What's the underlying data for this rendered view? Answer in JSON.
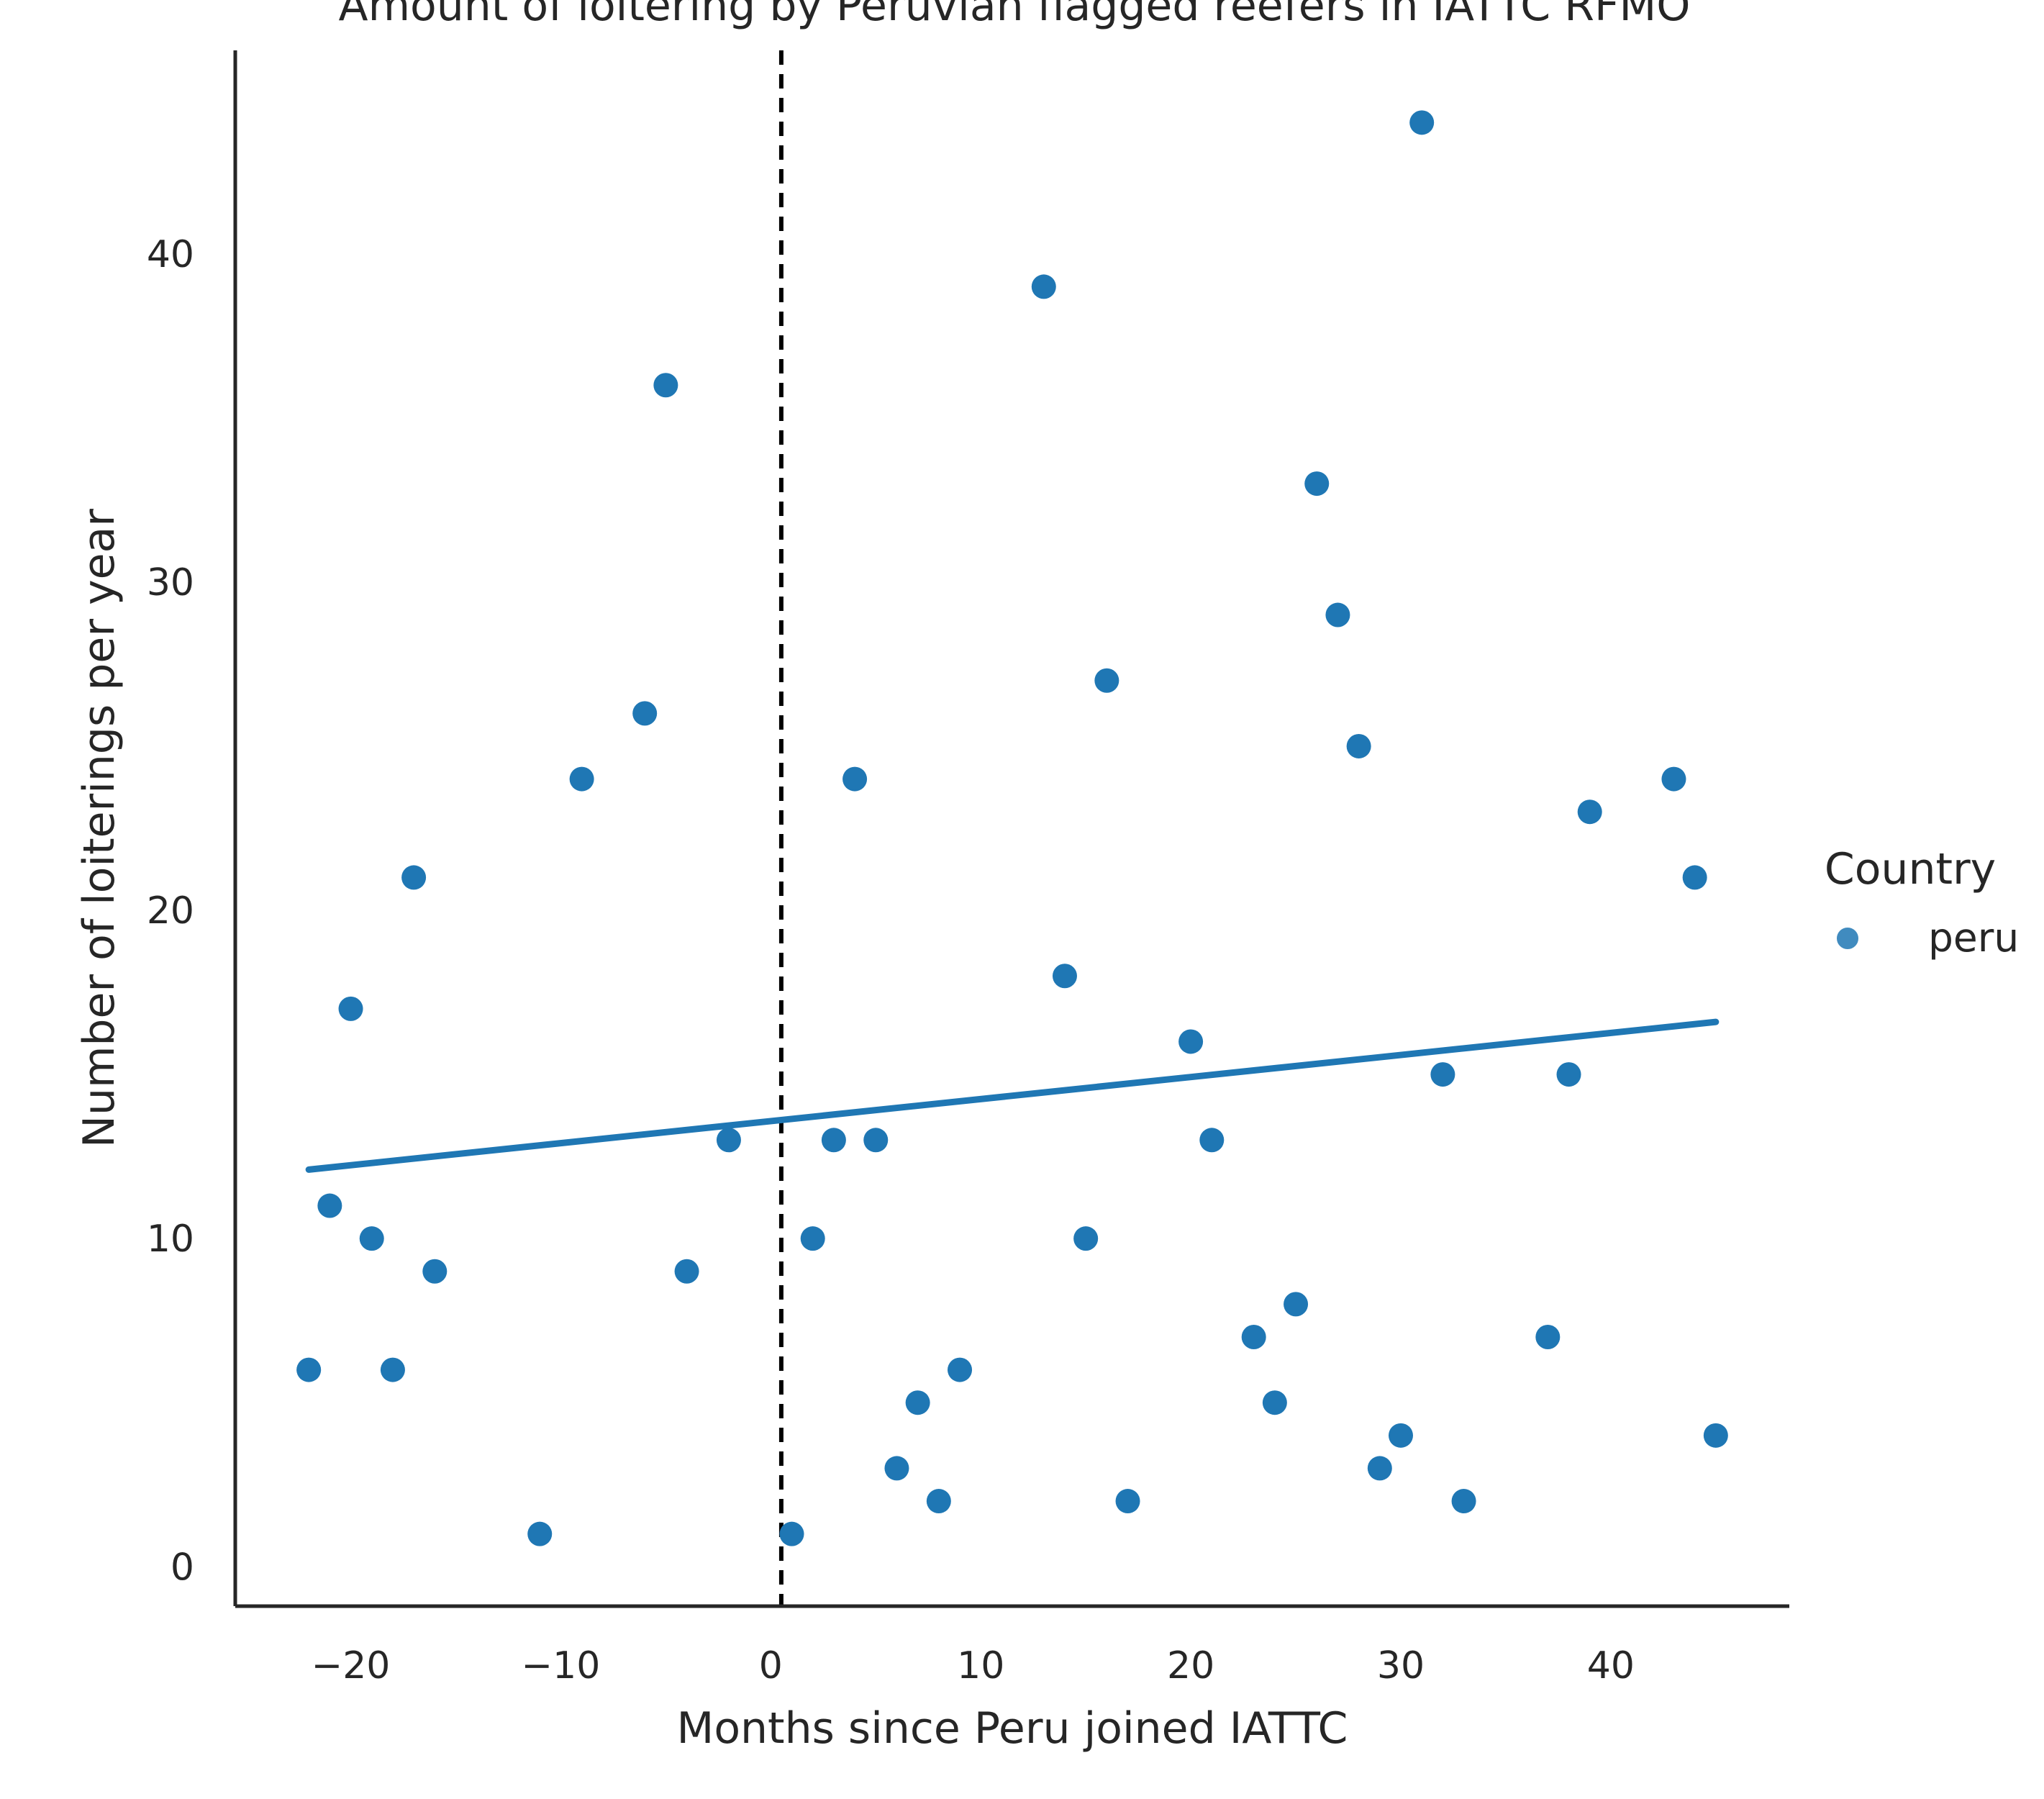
{
  "chart_data": {
    "type": "scatter",
    "title": "Amount of loitering by Peruvian flagged reefers in IATTC RFMO",
    "xlabel": "Months since Peru joined IATTC",
    "ylabel": "Number of loiterings per year",
    "xlim": [
      -25.5,
      48.5
    ],
    "ylim": [
      -1.2,
      46.2
    ],
    "xticks": [
      -20,
      -10,
      0,
      10,
      20,
      30,
      40
    ],
    "xtick_labels": [
      "−20",
      "−10",
      "0",
      "10",
      "20",
      "30",
      "40"
    ],
    "yticks": [
      0,
      10,
      20,
      30,
      40
    ],
    "ytick_labels": [
      "0",
      "10",
      "20",
      "30",
      "40"
    ],
    "grid": false,
    "legend": {
      "title": "Country",
      "placement": "right",
      "entries": [
        {
          "label": "peru",
          "color": "#1f77b4"
        }
      ]
    },
    "vline": {
      "x": 0.5,
      "style": "dashed",
      "color": "#000000"
    },
    "series": [
      {
        "name": "peru",
        "color": "#1f77b4",
        "points": [
          [
            -22,
            6
          ],
          [
            -21,
            11
          ],
          [
            -20,
            17
          ],
          [
            -19,
            10
          ],
          [
            -18,
            6
          ],
          [
            -17,
            21
          ],
          [
            -16,
            9
          ],
          [
            -11,
            1
          ],
          [
            -9,
            24
          ],
          [
            -6,
            26
          ],
          [
            -5,
            36
          ],
          [
            -4,
            9
          ],
          [
            -2,
            13
          ],
          [
            1,
            1
          ],
          [
            2,
            10
          ],
          [
            3,
            13
          ],
          [
            4,
            24
          ],
          [
            5,
            13
          ],
          [
            6,
            3
          ],
          [
            7,
            5
          ],
          [
            8,
            2
          ],
          [
            9,
            6
          ],
          [
            13,
            39
          ],
          [
            14,
            18
          ],
          [
            15,
            10
          ],
          [
            16,
            27
          ],
          [
            17,
            2
          ],
          [
            20,
            16
          ],
          [
            21,
            13
          ],
          [
            23,
            7
          ],
          [
            24,
            5
          ],
          [
            25,
            8
          ],
          [
            26,
            33
          ],
          [
            27,
            29
          ],
          [
            28,
            25
          ],
          [
            29,
            3
          ],
          [
            30,
            4
          ],
          [
            31,
            44
          ],
          [
            32,
            15
          ],
          [
            33,
            2
          ],
          [
            37,
            7
          ],
          [
            38,
            15
          ],
          [
            39,
            23
          ],
          [
            43,
            24
          ],
          [
            44,
            21
          ],
          [
            45,
            4
          ]
        ]
      }
    ],
    "fit_line": {
      "x": [
        -22,
        45
      ],
      "y": [
        12.1,
        16.6
      ],
      "color": "#1f77b4"
    }
  }
}
